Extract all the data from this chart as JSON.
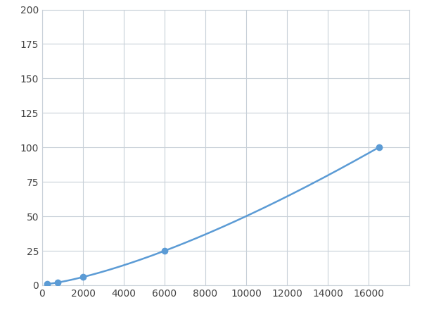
{
  "x": [
    250,
    750,
    2000,
    6000,
    16500
  ],
  "y": [
    1,
    2,
    6,
    25,
    100
  ],
  "line_color": "#5b9bd5",
  "marker_color": "#5b9bd5",
  "marker_size": 6,
  "xlim": [
    0,
    18000
  ],
  "ylim": [
    0,
    200
  ],
  "xticks": [
    0,
    2000,
    4000,
    6000,
    8000,
    10000,
    12000,
    14000,
    16000
  ],
  "yticks": [
    0,
    25,
    50,
    75,
    100,
    125,
    150,
    175,
    200
  ],
  "grid_color": "#c8d0d8",
  "background_color": "#ffffff",
  "line_width": 1.8,
  "figsize": [
    6.0,
    4.5
  ],
  "dpi": 100
}
